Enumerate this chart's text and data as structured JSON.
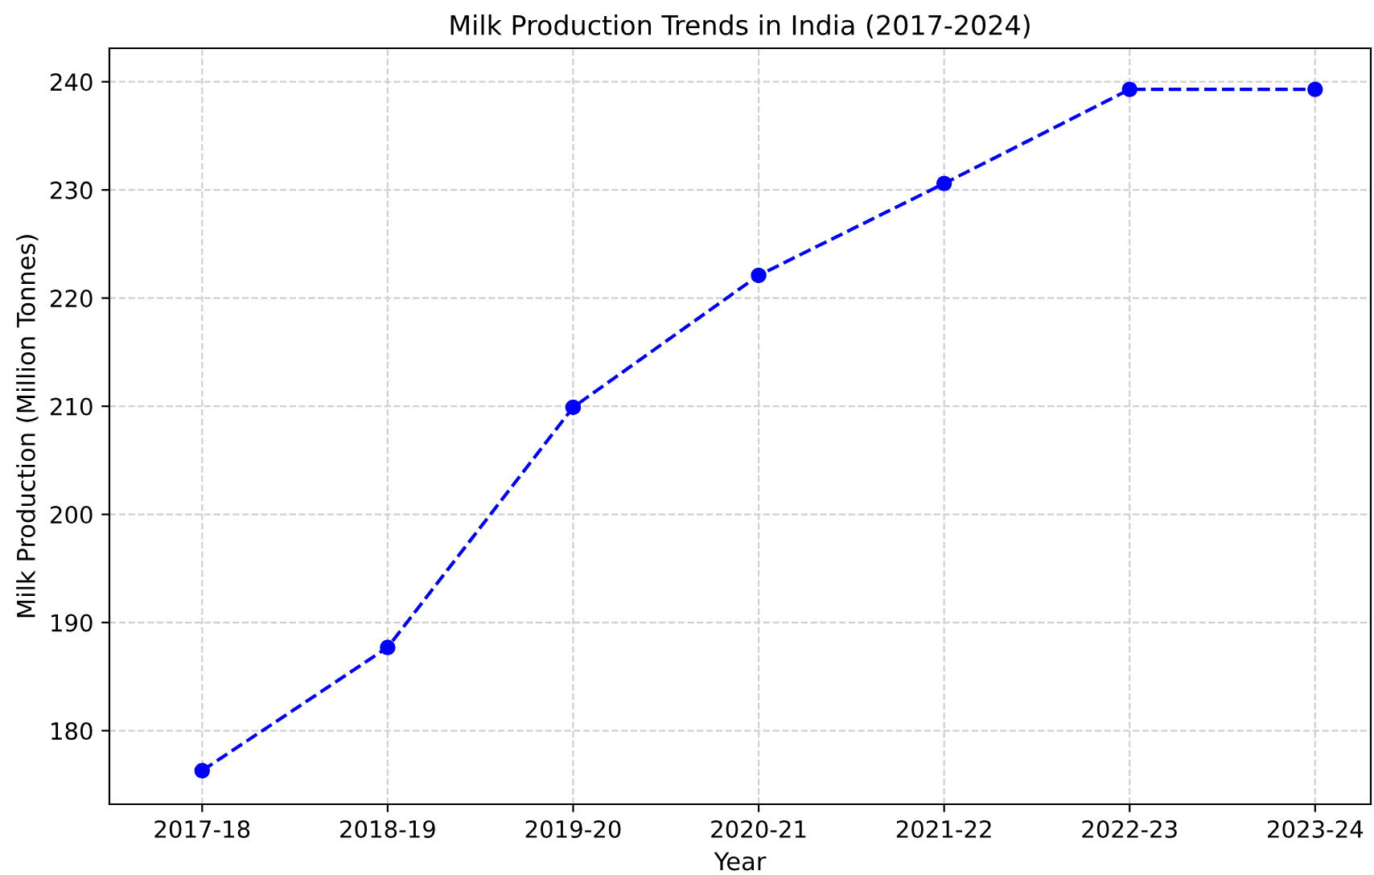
{
  "chart_data": {
    "type": "line",
    "title": "Milk Production Trends in India (2017-2024)",
    "xlabel": "Year",
    "ylabel": "Milk Production (Million Tonnes)",
    "categories": [
      "2017-18",
      "2018-19",
      "2019-20",
      "2020-21",
      "2021-22",
      "2022-23",
      "2023-24"
    ],
    "series": [
      {
        "color": "#0000ff",
        "values": [
          176.3,
          187.7,
          209.9,
          222.1,
          230.6,
          239.3,
          239.3
        ]
      }
    ],
    "ylim": [
      173.2,
      243.1
    ],
    "yticks": [
      180,
      190,
      200,
      210,
      220,
      230,
      240
    ],
    "grid": true,
    "marker": "circle",
    "line_style": "dashed",
    "legend": false
  }
}
